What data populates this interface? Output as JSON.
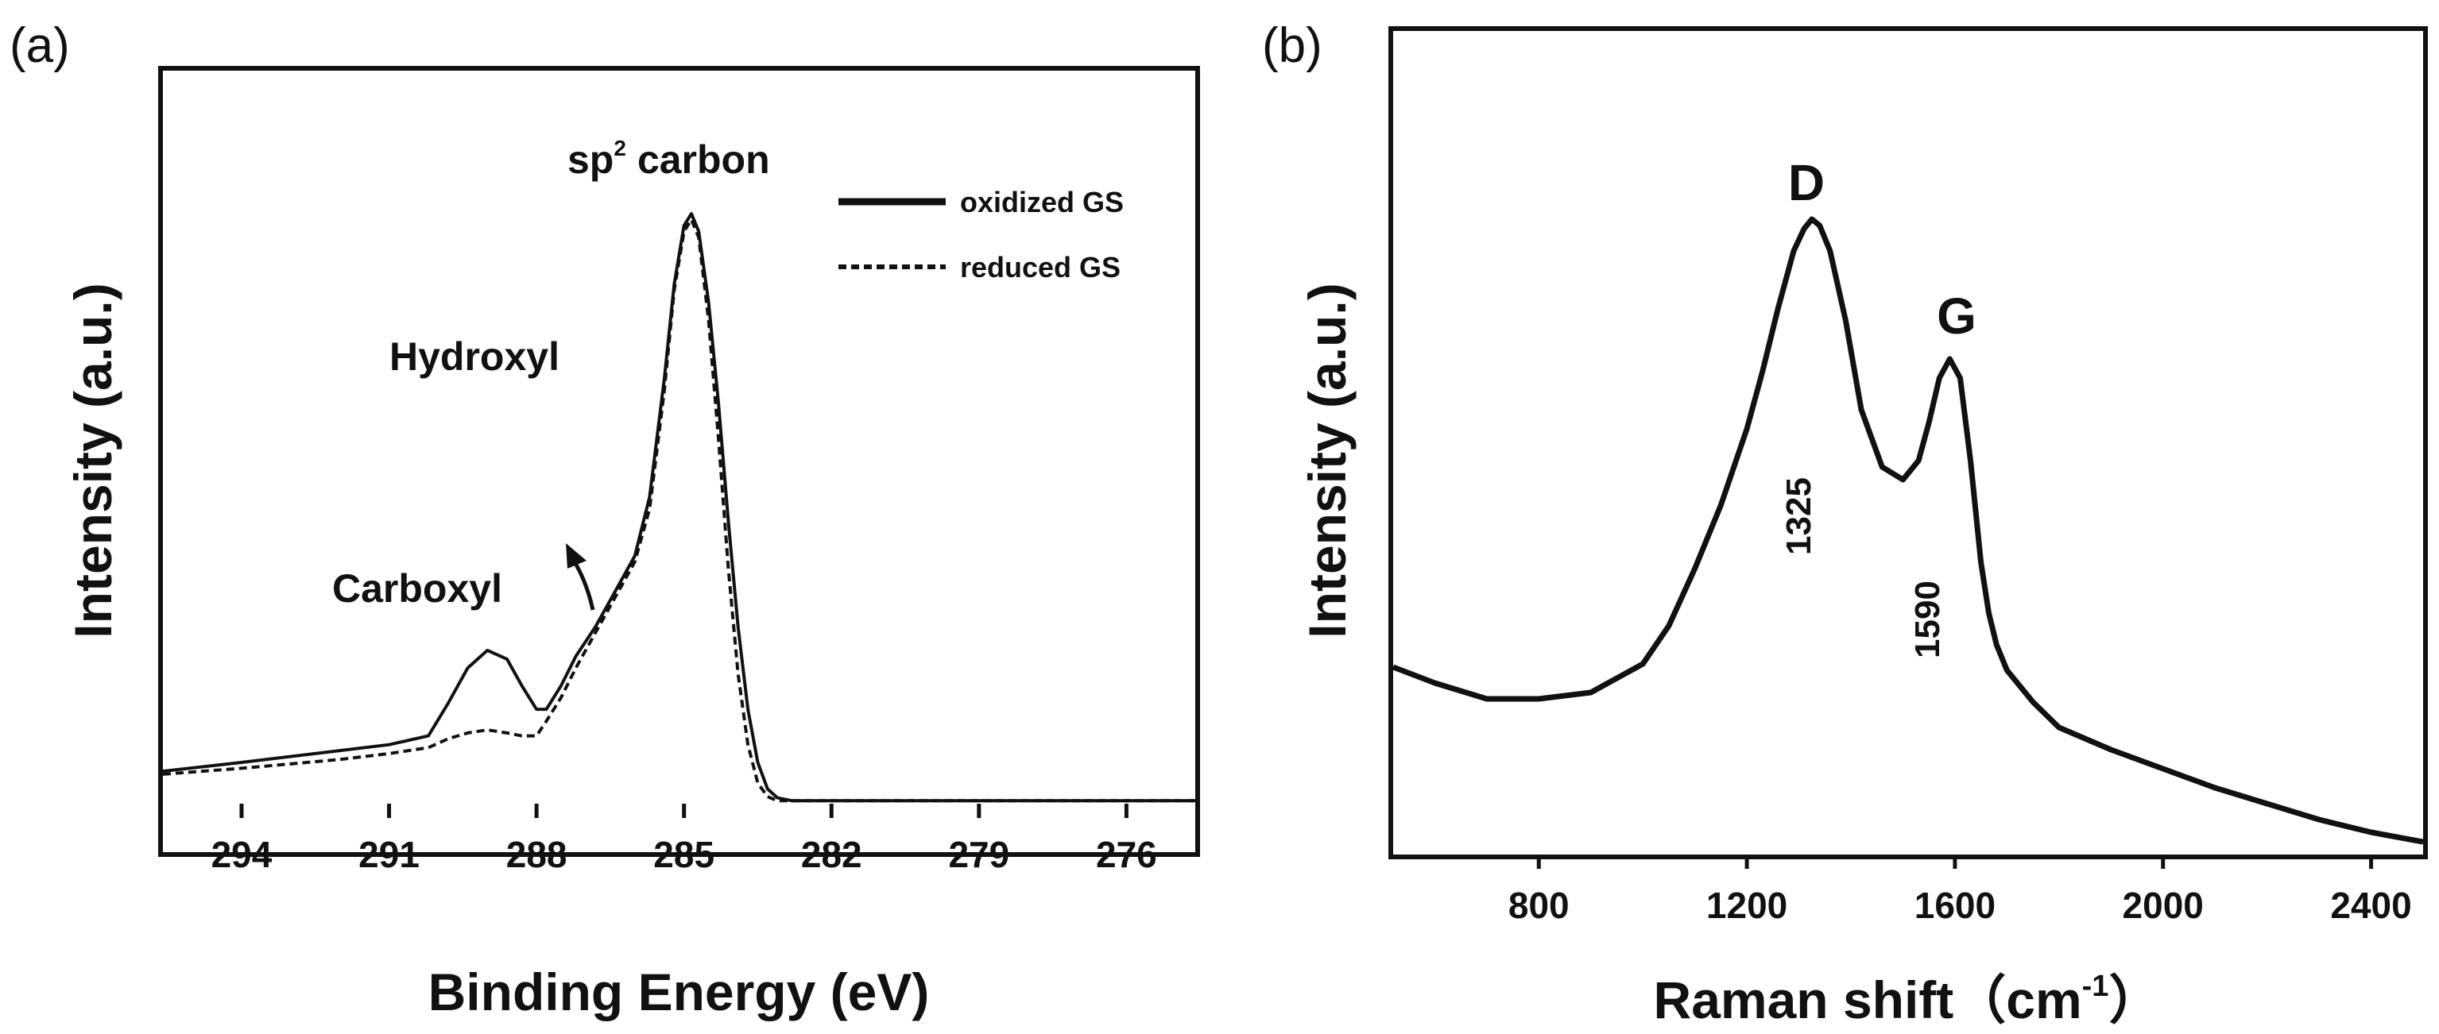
{
  "chart_data": [
    {
      "panel_label": "(a)",
      "type": "line",
      "xlabel": "Binding Energy (eV)",
      "ylabel": "Intensity (a.u.)",
      "xlim": [
        295.6,
        274.6
      ],
      "ylim": [
        0,
        1.05
      ],
      "x_ticks": [
        294,
        291,
        288,
        285,
        282,
        279,
        276
      ],
      "x_tick_labels": [
        "294",
        "291",
        "288",
        "285",
        "282",
        "279",
        "276"
      ],
      "annotations": {
        "sp2_main": "sp",
        "sp2_sup": "2",
        "sp2_rest": "carbon",
        "hydroxyl": "Hydroxyl",
        "carboxyl": "Carboxyl"
      },
      "series": [
        {
          "name": "oxidized GS",
          "style": "solid",
          "x": [
            295.6,
            294,
            292,
            291,
            290.2,
            289.8,
            289.4,
            289.0,
            288.6,
            288.3,
            288.0,
            287.8,
            287.5,
            287.2,
            286.8,
            286.4,
            286.0,
            285.7,
            285.4,
            285.2,
            285.0,
            284.85,
            284.7,
            284.5,
            284.3,
            284.1,
            283.9,
            283.7,
            283.5,
            283.3,
            283.1,
            282.8,
            282.0,
            280,
            278,
            276,
            274.6
          ],
          "y": [
            0.055,
            0.07,
            0.09,
            0.1,
            0.115,
            0.17,
            0.23,
            0.26,
            0.245,
            0.2,
            0.16,
            0.16,
            0.2,
            0.25,
            0.3,
            0.36,
            0.42,
            0.52,
            0.72,
            0.88,
            0.98,
            1.0,
            0.97,
            0.85,
            0.68,
            0.48,
            0.3,
            0.16,
            0.07,
            0.025,
            0.01,
            0.005,
            0.005,
            0.005,
            0.005,
            0.005,
            0.005
          ]
        },
        {
          "name": "reduced GS",
          "style": "dashed",
          "x": [
            295.6,
            294,
            292,
            291,
            290.2,
            289.8,
            289.4,
            289.0,
            288.6,
            288.3,
            288.0,
            287.8,
            287.5,
            287.2,
            286.8,
            286.4,
            286.0,
            285.7,
            285.4,
            285.2,
            285.0,
            284.85,
            284.7,
            284.5,
            284.3,
            284.1,
            283.9,
            283.7,
            283.5,
            283.3,
            283.1,
            282.8,
            282.0,
            280,
            278,
            276,
            274.6
          ],
          "y": [
            0.05,
            0.06,
            0.075,
            0.085,
            0.095,
            0.11,
            0.12,
            0.125,
            0.12,
            0.115,
            0.115,
            0.14,
            0.18,
            0.23,
            0.29,
            0.35,
            0.41,
            0.5,
            0.7,
            0.87,
            0.97,
            0.99,
            0.96,
            0.82,
            0.62,
            0.4,
            0.22,
            0.1,
            0.035,
            0.012,
            0.005,
            0.005,
            0.005,
            0.005,
            0.005,
            0.005,
            0.005
          ]
        }
      ],
      "legend": [
        {
          "label": "oxidized GS",
          "style": "solid"
        },
        {
          "label": "reduced GS",
          "style": "dashed"
        }
      ]
    },
    {
      "panel_label": "(b)",
      "type": "line",
      "xlabel_main": "Raman shift（cm",
      "xlabel_sup": "-1",
      "xlabel_end": "）",
      "ylabel": "Intensity (a.u.)",
      "xlim": [
        520,
        2500
      ],
      "ylim": [
        0,
        1.05
      ],
      "x_ticks": [
        800,
        1200,
        1600,
        2000,
        2400
      ],
      "x_tick_labels": [
        "800",
        "1200",
        "1600",
        "2000",
        "2400"
      ],
      "peaks": [
        {
          "letter": "D",
          "position": "1325",
          "x": 1325
        },
        {
          "letter": "G",
          "position": "1590",
          "x": 1590
        }
      ],
      "series": [
        {
          "name": "Raman spectrum",
          "style": "solid",
          "x": [
            520,
            600,
            700,
            800,
            900,
            1000,
            1050,
            1100,
            1150,
            1200,
            1230,
            1260,
            1290,
            1310,
            1325,
            1340,
            1360,
            1390,
            1420,
            1460,
            1500,
            1530,
            1550,
            1570,
            1590,
            1610,
            1630,
            1650,
            1665,
            1680,
            1700,
            1750,
            1800,
            1900,
            2000,
            2100,
            2200,
            2300,
            2400,
            2500
          ],
          "y": [
            0.295,
            0.27,
            0.245,
            0.245,
            0.255,
            0.3,
            0.36,
            0.45,
            0.55,
            0.67,
            0.76,
            0.86,
            0.95,
            0.985,
            1.0,
            0.99,
            0.95,
            0.84,
            0.7,
            0.61,
            0.59,
            0.62,
            0.68,
            0.75,
            0.78,
            0.75,
            0.62,
            0.46,
            0.38,
            0.33,
            0.29,
            0.24,
            0.2,
            0.165,
            0.135,
            0.105,
            0.08,
            0.055,
            0.035,
            0.02
          ]
        }
      ]
    }
  ]
}
